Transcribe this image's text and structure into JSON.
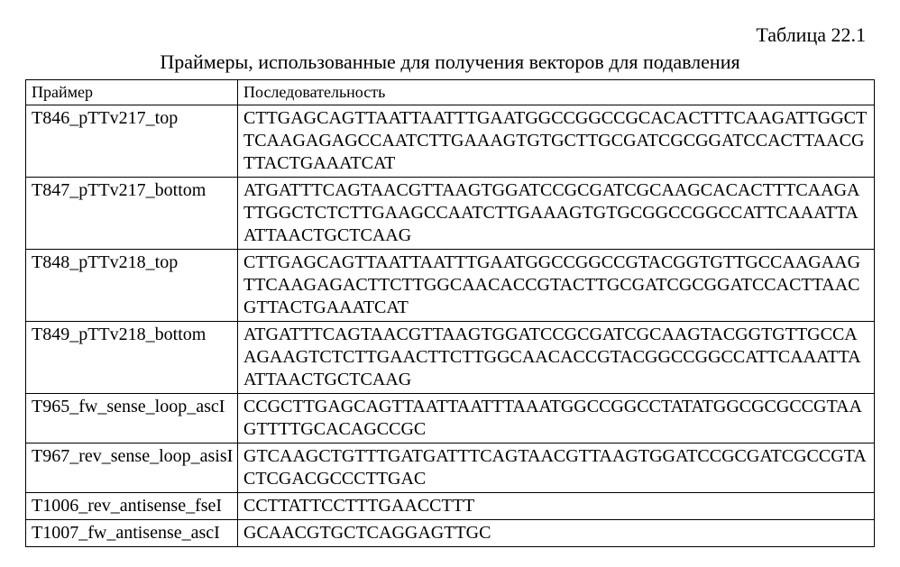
{
  "table": {
    "number": "Таблица 22.1",
    "caption": "Праймеры, использованные для получения векторов для подавления",
    "header": {
      "primer": "Праймер",
      "sequence": "Последовательность"
    },
    "rows": [
      {
        "primer": "T846_pTTv217_top",
        "sequence": "CTTGAGCAGTTAATTAATTTGAATGGCCGGCCGCACACTTTCAAGATTGGCTTCAAGAGAGCCAATCTTGAAAGTGTGCTTGCGATCGCGGATCCACTTAACGTTACTGAAATCAT"
      },
      {
        "primer": "T847_pTTv217_bottom",
        "sequence": "ATGATTTCAGTAACGTTAAGTGGATCCGCGATCGCAAGCACACTTTCAAGATTGGCTCTCTTGAAGCCAATCTTGAAAGTGTGCGGCCGGCCATTCAAATTAATTAACTGCTCAAG"
      },
      {
        "primer": "T848_pTTv218_top",
        "sequence": "CTTGAGCAGTTAATTAATTTGAATGGCCGGCCGTACGGTGTTGCCAAGAAGTTCAAGAGACTTCTTGGCAACACCGTACTTGCGATCGCGGATCCACTTAACGTTACTGAAATCAT"
      },
      {
        "primer": "T849_pTTv218_bottom",
        "sequence": "ATGATTTCAGTAACGTTAAGTGGATCCGCGATCGCAAGTACGGTGTTGCCAAGAAGTCTCTTGAACTTCTTGGCAACACCGTACGGCCGGCCATTCAAATTAATTAACTGCTCAAG"
      },
      {
        "primer": "T965_fw_sense_loop_ascI",
        "sequence": "CCGCTTGAGCAGTTAATTAATTTAAATGGCCGGCCTATATGGCGCGCCGTAAGTTTTGCACAGCCGC"
      },
      {
        "primer": "T967_rev_sense_loop_asisI",
        "sequence": "GTCAAGCTGTTTGATGATTTCAGTAACGTTAAGTGGATCCGCGATCGCCGTACTCGACGCCCTTGAC"
      },
      {
        "primer": "T1006_rev_antisense_fseI",
        "sequence": "CCTTATTCCTTTGAACCTTT"
      },
      {
        "primer": "T1007_fw_antisense_ascI",
        "sequence": "GCAACGTGCTCAGGAGTTGC"
      }
    ]
  },
  "colors": {
    "background": "#ffffff",
    "text": "#000000",
    "border": "#000000"
  },
  "typography": {
    "font_family": "Times New Roman",
    "caption_fontsize_pt": 16,
    "header_fontsize_pt": 14,
    "cell_fontsize_pt": 15
  }
}
